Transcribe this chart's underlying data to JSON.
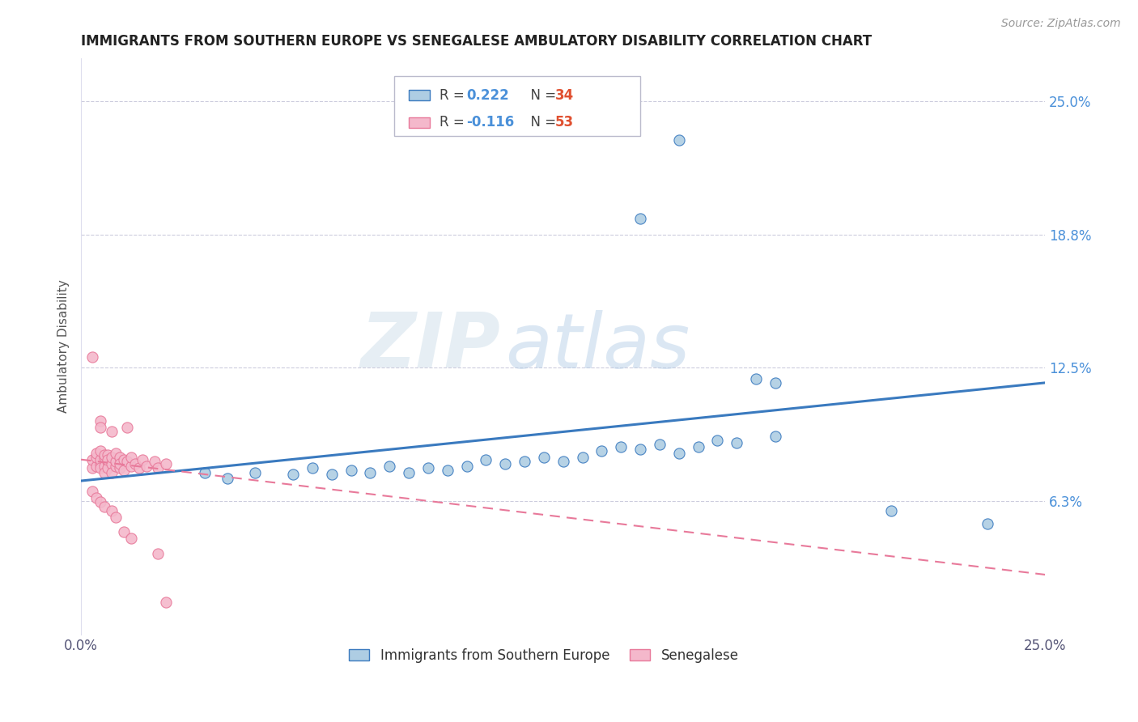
{
  "title": "IMMIGRANTS FROM SOUTHERN EUROPE VS SENEGALESE AMBULATORY DISABILITY CORRELATION CHART",
  "source": "Source: ZipAtlas.com",
  "ylabel": "Ambulatory Disability",
  "r_blue": 0.222,
  "n_blue": 34,
  "r_pink": -0.116,
  "n_pink": 53,
  "xlim": [
    0.0,
    0.25
  ],
  "ylim": [
    0.0,
    0.27
  ],
  "yticks": [
    0.0625,
    0.125,
    0.1875,
    0.25
  ],
  "ytick_labels": [
    "6.3%",
    "12.5%",
    "18.8%",
    "25.0%"
  ],
  "xtick_labels": [
    "0.0%",
    "25.0%"
  ],
  "watermark_zip": "ZIP",
  "watermark_atlas": "atlas",
  "legend_labels": [
    "Immigrants from Southern Europe",
    "Senegalese"
  ],
  "blue_color": "#aecde3",
  "pink_color": "#f4b8cb",
  "line_blue": "#3a7abf",
  "line_pink": "#e8799a",
  "text_blue": "#4a90d9",
  "text_red": "#e05030",
  "blue_scatter": [
    [
      0.032,
      0.076
    ],
    [
      0.038,
      0.073
    ],
    [
      0.045,
      0.076
    ],
    [
      0.055,
      0.075
    ],
    [
      0.06,
      0.078
    ],
    [
      0.065,
      0.075
    ],
    [
      0.07,
      0.077
    ],
    [
      0.075,
      0.076
    ],
    [
      0.08,
      0.079
    ],
    [
      0.085,
      0.076
    ],
    [
      0.09,
      0.078
    ],
    [
      0.095,
      0.077
    ],
    [
      0.1,
      0.079
    ],
    [
      0.105,
      0.082
    ],
    [
      0.11,
      0.08
    ],
    [
      0.115,
      0.081
    ],
    [
      0.12,
      0.083
    ],
    [
      0.125,
      0.081
    ],
    [
      0.13,
      0.083
    ],
    [
      0.135,
      0.086
    ],
    [
      0.14,
      0.088
    ],
    [
      0.145,
      0.087
    ],
    [
      0.15,
      0.089
    ],
    [
      0.155,
      0.085
    ],
    [
      0.16,
      0.088
    ],
    [
      0.165,
      0.091
    ],
    [
      0.17,
      0.09
    ],
    [
      0.18,
      0.093
    ],
    [
      0.175,
      0.12
    ],
    [
      0.18,
      0.118
    ],
    [
      0.21,
      0.058
    ],
    [
      0.235,
      0.052
    ],
    [
      0.145,
      0.195
    ],
    [
      0.155,
      0.232
    ]
  ],
  "pink_scatter": [
    [
      0.003,
      0.078
    ],
    [
      0.003,
      0.082
    ],
    [
      0.004,
      0.079
    ],
    [
      0.004,
      0.083
    ],
    [
      0.004,
      0.085
    ],
    [
      0.005,
      0.08
    ],
    [
      0.005,
      0.082
    ],
    [
      0.005,
      0.086
    ],
    [
      0.005,
      0.078
    ],
    [
      0.006,
      0.083
    ],
    [
      0.006,
      0.079
    ],
    [
      0.006,
      0.084
    ],
    [
      0.006,
      0.076
    ],
    [
      0.007,
      0.081
    ],
    [
      0.007,
      0.084
    ],
    [
      0.007,
      0.078
    ],
    [
      0.007,
      0.082
    ],
    [
      0.008,
      0.08
    ],
    [
      0.008,
      0.076
    ],
    [
      0.008,
      0.083
    ],
    [
      0.009,
      0.079
    ],
    [
      0.009,
      0.081
    ],
    [
      0.009,
      0.085
    ],
    [
      0.01,
      0.078
    ],
    [
      0.01,
      0.083
    ],
    [
      0.01,
      0.08
    ],
    [
      0.011,
      0.082
    ],
    [
      0.011,
      0.077
    ],
    [
      0.012,
      0.081
    ],
    [
      0.013,
      0.079
    ],
    [
      0.013,
      0.083
    ],
    [
      0.014,
      0.08
    ],
    [
      0.015,
      0.078
    ],
    [
      0.016,
      0.082
    ],
    [
      0.017,
      0.079
    ],
    [
      0.019,
      0.081
    ],
    [
      0.02,
      0.078
    ],
    [
      0.022,
      0.08
    ],
    [
      0.005,
      0.1
    ],
    [
      0.005,
      0.097
    ],
    [
      0.008,
      0.095
    ],
    [
      0.012,
      0.097
    ],
    [
      0.003,
      0.13
    ],
    [
      0.003,
      0.067
    ],
    [
      0.004,
      0.064
    ],
    [
      0.005,
      0.062
    ],
    [
      0.006,
      0.06
    ],
    [
      0.008,
      0.058
    ],
    [
      0.009,
      0.055
    ],
    [
      0.011,
      0.048
    ],
    [
      0.013,
      0.045
    ],
    [
      0.02,
      0.038
    ],
    [
      0.022,
      0.015
    ]
  ],
  "blue_line_x": [
    0.0,
    0.25
  ],
  "blue_line_y": [
    0.072,
    0.118
  ],
  "pink_line_x": [
    0.0,
    0.25
  ],
  "pink_line_y": [
    0.082,
    0.028
  ]
}
